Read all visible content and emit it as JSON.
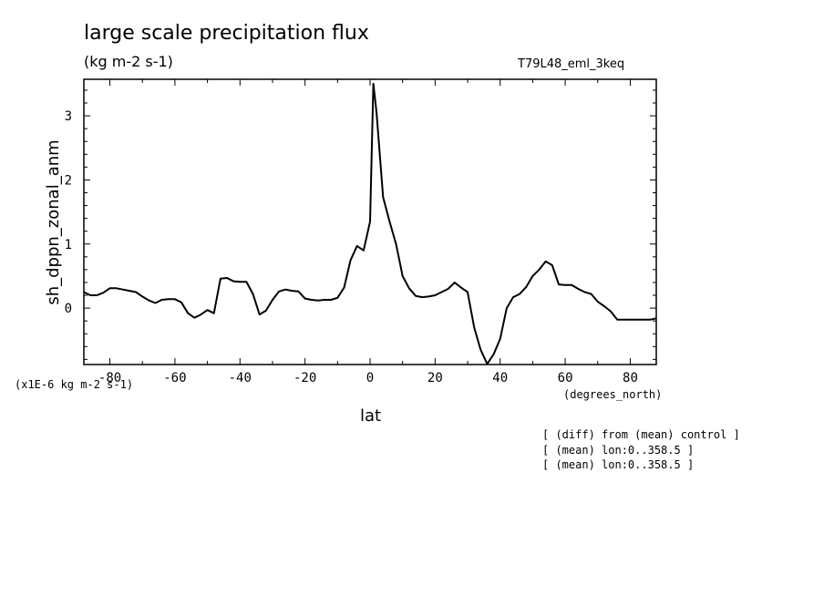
{
  "chart_data": {
    "type": "line",
    "title": "large scale precipitation flux",
    "subtitle": "(kg m-2 s-1)",
    "experiment": "T79L48_eml_3keq",
    "xlabel": "lat",
    "ylabel": "sh_dppn_zonal_anm",
    "x_units": "(degrees_north)",
    "y_units": "(x1E-6 kg m-2 s-1)",
    "xlim": [
      -88,
      88
    ],
    "ylim": [
      -0.88,
      3.57
    ],
    "x_ticks": [
      "-80",
      "-60",
      "-40",
      "-20",
      "0",
      "20",
      "40",
      "60",
      "80"
    ],
    "y_ticks": [
      "0",
      "1",
      "2",
      "3"
    ],
    "series": [
      {
        "x": [
          -88,
          -86,
          -84,
          -82,
          -80,
          -78,
          -76,
          -74,
          -72,
          -70,
          -68,
          -66,
          -64,
          -62,
          -60,
          -58,
          -56,
          -54,
          -52,
          -50,
          -48,
          -46,
          -44,
          -42,
          -40,
          -38,
          -36,
          -34,
          -32,
          -30,
          -28,
          -26,
          -24,
          -22,
          -20,
          -18,
          -16,
          -14,
          -12,
          -10,
          -8,
          -6,
          -4,
          -2,
          0,
          1,
          2,
          4,
          6,
          8,
          10,
          12,
          14,
          16,
          18,
          20,
          22,
          24,
          26,
          28,
          30,
          32,
          34,
          36,
          38,
          40,
          42,
          44,
          46,
          48,
          50,
          52,
          54,
          56,
          58,
          60,
          62,
          64,
          66,
          68,
          70,
          72,
          74,
          76,
          78,
          80,
          82,
          84,
          86,
          88
        ],
        "y": [
          0.25,
          0.2,
          0.2,
          0.24,
          0.31,
          0.31,
          0.29,
          0.27,
          0.25,
          0.18,
          0.12,
          0.08,
          0.13,
          0.14,
          0.14,
          0.09,
          -0.08,
          -0.15,
          -0.1,
          -0.03,
          -0.08,
          0.46,
          0.47,
          0.42,
          0.41,
          0.41,
          0.22,
          -0.1,
          -0.04,
          0.13,
          0.26,
          0.29,
          0.27,
          0.26,
          0.15,
          0.13,
          0.12,
          0.13,
          0.13,
          0.16,
          0.32,
          0.75,
          0.97,
          0.9,
          1.35,
          3.5,
          3.05,
          1.73,
          1.35,
          1.0,
          0.5,
          0.31,
          0.19,
          0.17,
          0.18,
          0.2,
          0.25,
          0.3,
          0.4,
          0.32,
          0.25,
          -0.3,
          -0.65,
          -0.87,
          -0.72,
          -0.48,
          0.0,
          0.17,
          0.22,
          0.33,
          0.5,
          0.6,
          0.73,
          0.67,
          0.37,
          0.36,
          0.36,
          0.3,
          0.25,
          0.22,
          0.1,
          0.03,
          -0.05,
          -0.18,
          -0.18,
          -0.18,
          -0.18,
          -0.18,
          -0.18,
          -0.16
        ]
      }
    ]
  },
  "notes": [
    "[ (diff) from (mean) control ]",
    "[ (mean) lon:0..358.5 ]",
    "[ (mean) lon:0..358.5 ]"
  ]
}
